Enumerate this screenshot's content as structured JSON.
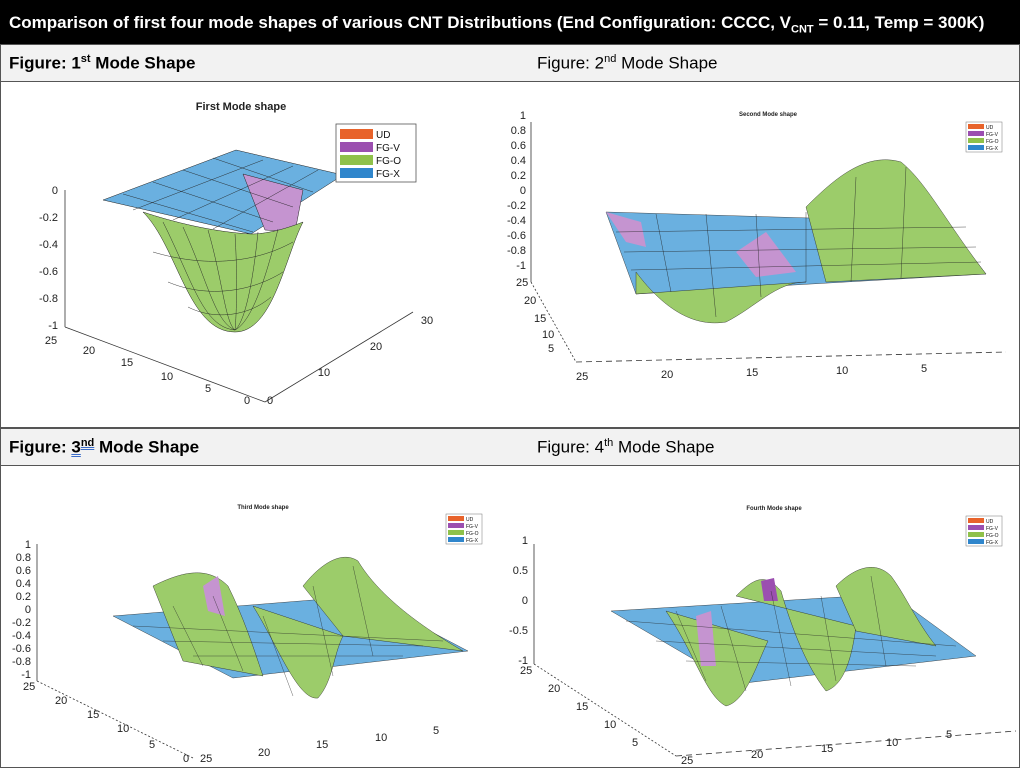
{
  "page_title_prefix": "Comparison of first four mode shapes of various CNT Distributions (End Configuration: CCCC, V",
  "page_title_sub": "CNT",
  "page_title_suffix": " = 0.11, Temp = 300K)",
  "row1": {
    "left_prefix": "Figure: 1",
    "left_sup": "st",
    "left_suffix": " Mode Shape",
    "right_prefix": "Figure: 2",
    "right_sup": "nd",
    "right_suffix": " Mode Shape"
  },
  "row2": {
    "left_prefix": "Figure: ",
    "left_num": "3",
    "left_sup": "nd",
    "left_suffix": " Mode Shape",
    "right_prefix": "Figure: 4",
    "right_sup": "th",
    "right_suffix": " Mode Shape"
  },
  "legend": [
    "UD",
    "FG-V",
    "FG-O",
    "FG-X"
  ],
  "colors": {
    "UD": "#e8632b",
    "FG-V": "#9b4fb0",
    "FG-O": "#8fc14a",
    "FG-X": "#2f86cc",
    "surface_green": "#9ccc6a",
    "surface_blue": "#6ab0e0",
    "surface_purple": "#c594d0"
  },
  "plots": {
    "first": {
      "title": "First Mode shape",
      "z_ticks": [
        "0",
        "-0.2",
        "-0.4",
        "-0.6",
        "-0.8",
        "-1"
      ],
      "y_ticks": [
        "25",
        "20",
        "15",
        "10",
        "5",
        "0"
      ],
      "x_ticks": [
        "0",
        "10",
        "20",
        "30"
      ]
    },
    "second": {
      "title": "Second Mode shape",
      "z_ticks": [
        "1",
        "0.8",
        "0.6",
        "0.4",
        "0.2",
        "0",
        "-0.2",
        "-0.4",
        "-0.6",
        "-0.8",
        "-1"
      ],
      "y_ticks": [
        "25",
        "20",
        "15",
        "10",
        "5"
      ],
      "x_ticks": [
        "25",
        "20",
        "15",
        "10",
        "5"
      ]
    },
    "third": {
      "title": "Third Mode shape",
      "z_ticks": [
        "1",
        "0.8",
        "0.6",
        "0.4",
        "0.2",
        "0",
        "-0.2",
        "-0.4",
        "-0.6",
        "-0.8",
        "-1"
      ],
      "y_ticks": [
        "25",
        "20",
        "15",
        "10",
        "5",
        "0"
      ],
      "x_ticks": [
        "25",
        "20",
        "15",
        "10",
        "5"
      ]
    },
    "fourth": {
      "title": "Fourth Mode shape",
      "z_ticks": [
        "1",
        "0.5",
        "0",
        "-0.5",
        "-1"
      ],
      "y_ticks": [
        "25",
        "20",
        "15",
        "10",
        "5"
      ],
      "x_ticks": [
        "25",
        "20",
        "15",
        "10",
        "5"
      ]
    }
  }
}
